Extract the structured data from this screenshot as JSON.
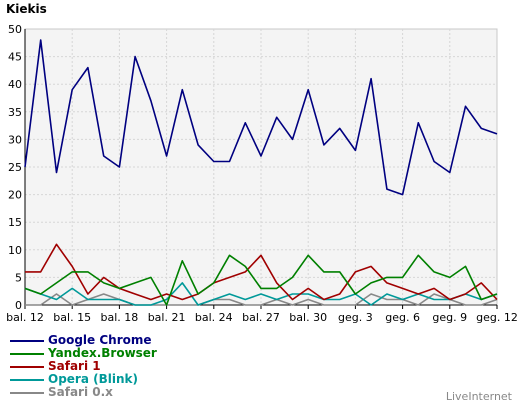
{
  "chart_data": {
    "type": "line",
    "title": "Kiekis",
    "xlabel": "",
    "ylabel": "",
    "ylim": [
      0,
      50
    ],
    "yticks": [
      0,
      5,
      10,
      15,
      20,
      25,
      30,
      35,
      40,
      45,
      50
    ],
    "grid": true,
    "legend_position": "bottom-left",
    "xtick_labels": [
      "bal. 12",
      "bal. 15",
      "bal. 18",
      "bal. 21",
      "bal. 24",
      "bal. 27",
      "bal. 30",
      "geg. 3",
      "geg. 6",
      "geg. 9",
      "geg. 12"
    ],
    "xtick_every": 3,
    "num_points": 31,
    "series": [
      {
        "name": "Google Chrome",
        "color": "#000080",
        "values": [
          25,
          48,
          24,
          39,
          43,
          27,
          25,
          45,
          37,
          27,
          39,
          29,
          26,
          26,
          33,
          27,
          34,
          30,
          39,
          29,
          32,
          28,
          41,
          21,
          20,
          33,
          26,
          24,
          36,
          32,
          31
        ]
      },
      {
        "name": "Yandex.Browser",
        "color": "#008000",
        "values": [
          3,
          2,
          4,
          6,
          6,
          4,
          3,
          4,
          5,
          0,
          8,
          2,
          4,
          9,
          7,
          3,
          3,
          5,
          9,
          6,
          6,
          2,
          4,
          5,
          5,
          9,
          6,
          5,
          7,
          1,
          2
        ]
      },
      {
        "name": "Safari 1",
        "color": "#a00000",
        "values": [
          6,
          6,
          11,
          7,
          2,
          5,
          3,
          2,
          1,
          2,
          1,
          2,
          4,
          5,
          6,
          9,
          4,
          1,
          3,
          1,
          2,
          6,
          7,
          4,
          3,
          2,
          3,
          1,
          2,
          4,
          1
        ]
      },
      {
        "name": "Opera (Blink)",
        "color": "#009999",
        "values": [
          3,
          2,
          1,
          3,
          1,
          1,
          1,
          0,
          0,
          1,
          4,
          0,
          1,
          2,
          1,
          2,
          1,
          2,
          2,
          1,
          1,
          2,
          0,
          2,
          1,
          2,
          1,
          1,
          2,
          1,
          2
        ]
      },
      {
        "name": "Safari 0.x",
        "color": "#888888",
        "values": [
          0,
          0,
          2,
          0,
          1,
          2,
          1,
          0,
          0,
          0,
          0,
          0,
          1,
          1,
          0,
          0,
          1,
          0,
          1,
          0,
          0,
          0,
          2,
          1,
          1,
          0,
          2,
          1,
          0,
          0,
          1
        ]
      }
    ]
  },
  "brand": "LiveInternet"
}
